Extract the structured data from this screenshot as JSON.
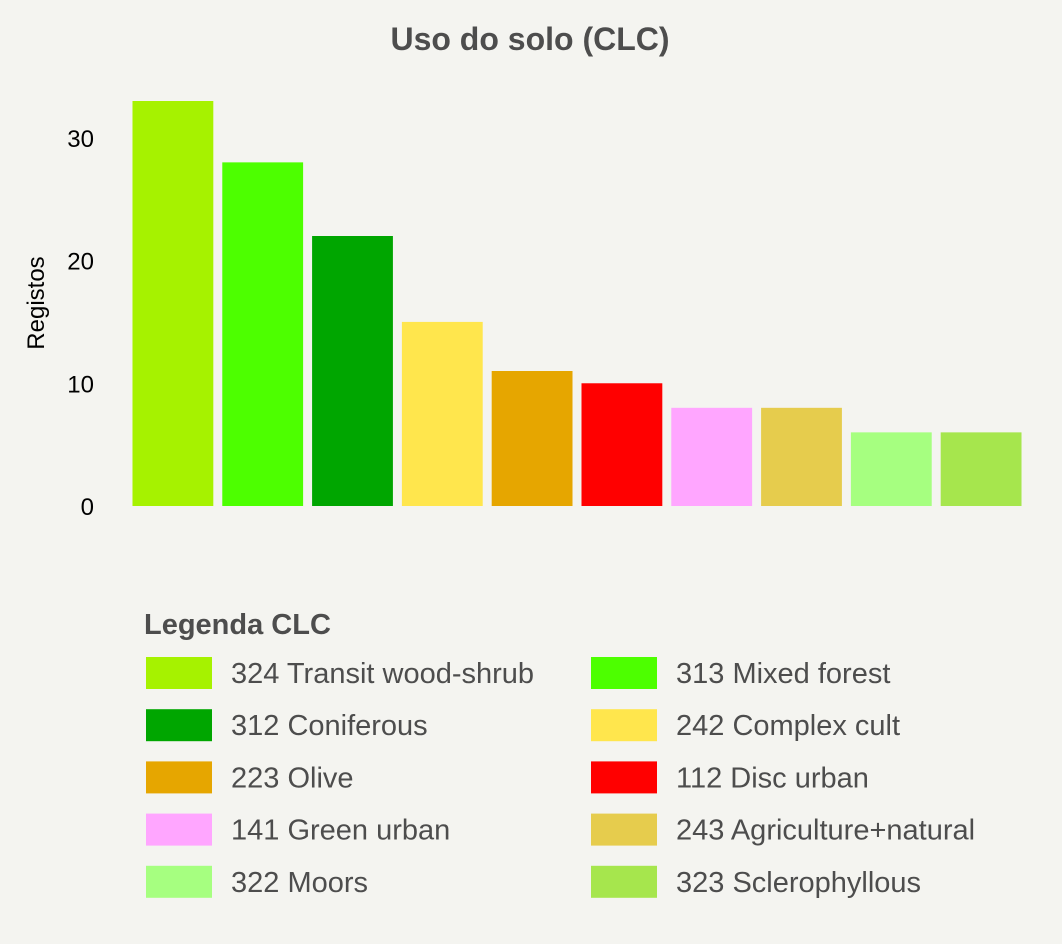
{
  "chart_data": {
    "type": "bar",
    "title": "Uso do solo (CLC)",
    "xlabel": "",
    "ylabel": "Registos",
    "ylim": [
      0,
      33
    ],
    "yticks": [
      0,
      10,
      20,
      30
    ],
    "grid": false,
    "categories": [
      "324 Transit wood-shrub",
      "313 Mixed forest",
      "312 Coniferous",
      "242 Complex cult",
      "223 Olive",
      "112 Disc urban",
      "141 Green urban",
      "243 Agriculture+natural",
      "322 Moors",
      "323 Sclerophyllous"
    ],
    "values": [
      33,
      28,
      22,
      15,
      11,
      10,
      8,
      8,
      6,
      6
    ],
    "colors": [
      "#a6f200",
      "#4dff00",
      "#00a600",
      "#ffe64d",
      "#e6a600",
      "#ff0000",
      "#ffa6ff",
      "#e6cc4d",
      "#a6ff80",
      "#a6e64d"
    ],
    "legend": {
      "title": "Legenda CLC",
      "placement": "bottom"
    }
  }
}
